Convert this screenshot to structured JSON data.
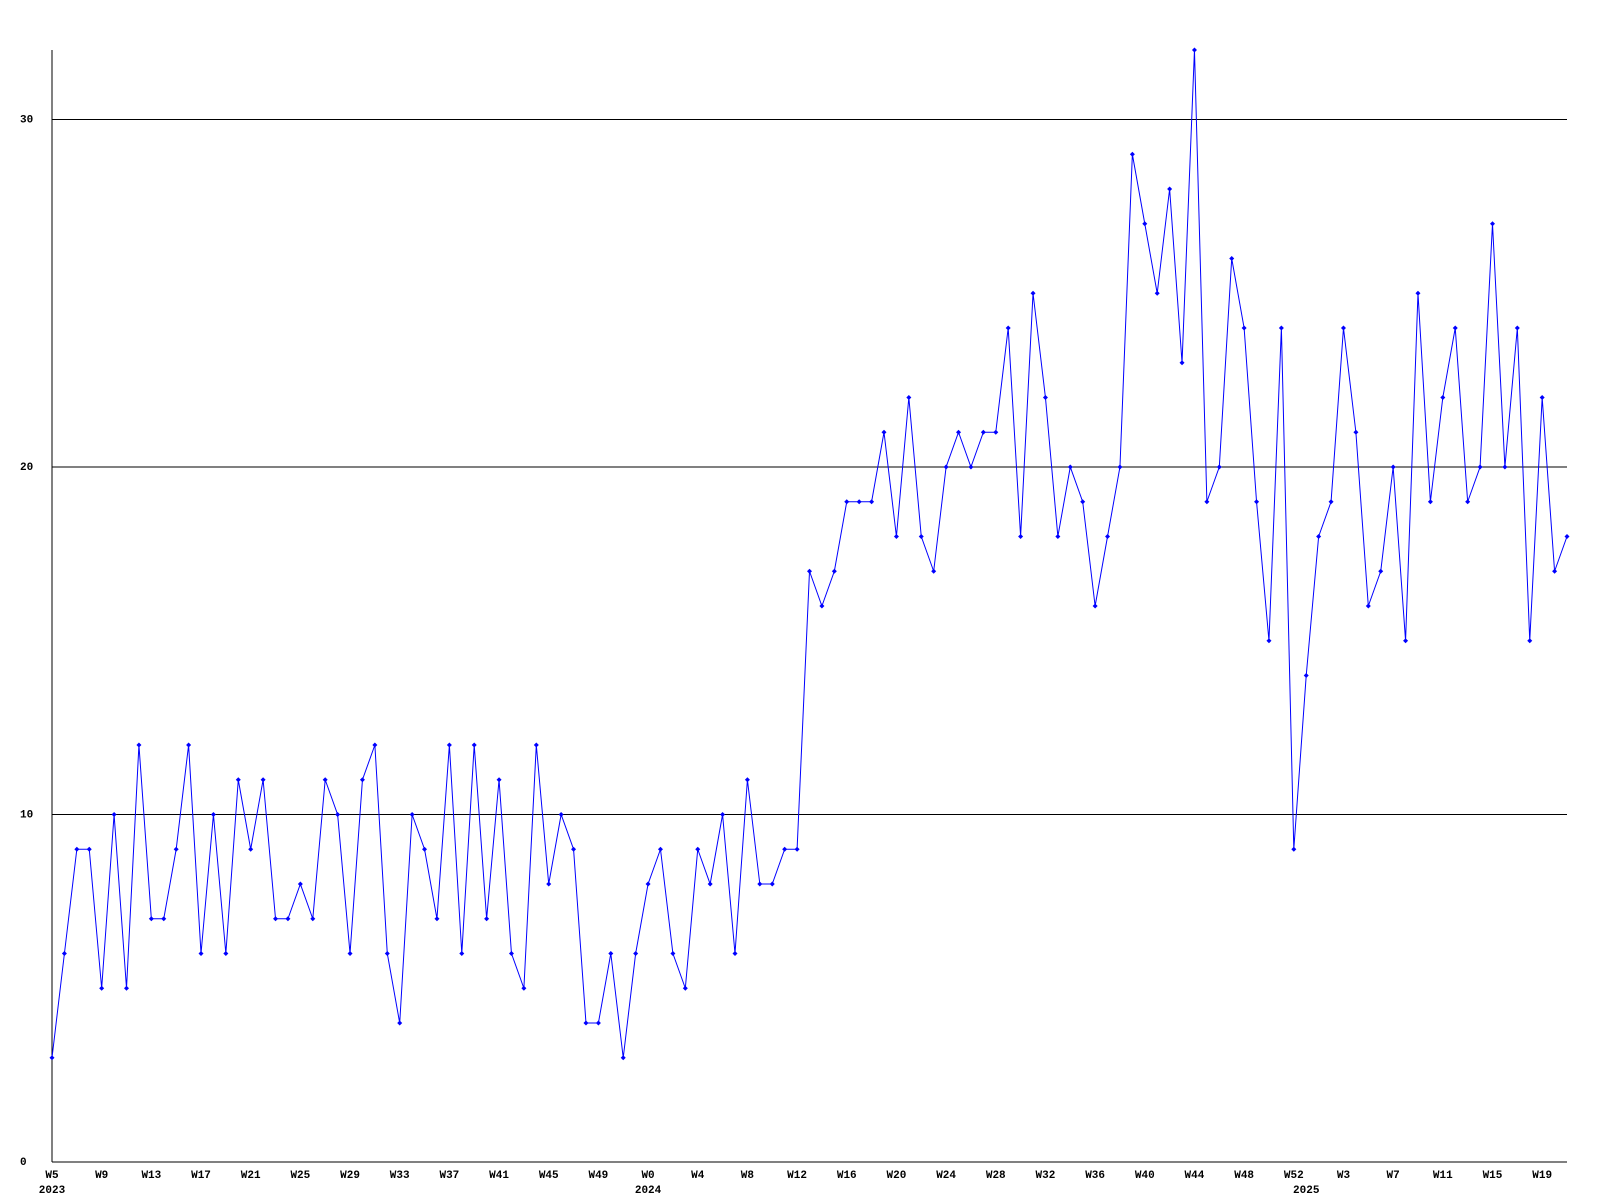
{
  "chart_data": {
    "type": "line",
    "categories": [
      "W5",
      null,
      null,
      null,
      "W9",
      null,
      null,
      null,
      "W13",
      null,
      null,
      null,
      "W17",
      null,
      null,
      null,
      "W21",
      null,
      null,
      null,
      "W25",
      null,
      null,
      null,
      "W29",
      null,
      null,
      null,
      "W33",
      null,
      null,
      null,
      "W37",
      null,
      null,
      null,
      "W41",
      null,
      null,
      null,
      "W45",
      null,
      null,
      null,
      "W49",
      null,
      null,
      null,
      "W0",
      null,
      null,
      null,
      "W4",
      null,
      null,
      null,
      "W8",
      null,
      null,
      null,
      "W12",
      null,
      null,
      null,
      "W16",
      null,
      null,
      null,
      "W20",
      null,
      null,
      null,
      "W24",
      null,
      null,
      null,
      "W28",
      null,
      null,
      null,
      "W32",
      null,
      null,
      null,
      "W36",
      null,
      null,
      null,
      "W40",
      null,
      null,
      null,
      "W44",
      null,
      null,
      null,
      "W48",
      null,
      null,
      null,
      "W52",
      null,
      null,
      null,
      "W3",
      null,
      null,
      null,
      "W7",
      null,
      null,
      null,
      "W11",
      null,
      null,
      null,
      "W15",
      null,
      null,
      null,
      "W19",
      null,
      null
    ],
    "year_labels": [
      "2023",
      null,
      null,
      null,
      null,
      null,
      null,
      null,
      null,
      null,
      null,
      null,
      null,
      null,
      null,
      null,
      null,
      null,
      null,
      null,
      null,
      null,
      null,
      null,
      null,
      null,
      null,
      null,
      null,
      null,
      null,
      null,
      null,
      null,
      null,
      null,
      null,
      null,
      null,
      null,
      null,
      null,
      null,
      null,
      null,
      null,
      null,
      null,
      "2024",
      null,
      null,
      null,
      null,
      null,
      null,
      null,
      null,
      null,
      null,
      null,
      null,
      null,
      null,
      null,
      null,
      null,
      null,
      null,
      null,
      null,
      null,
      null,
      null,
      null,
      null,
      null,
      null,
      null,
      null,
      null,
      null,
      null,
      null,
      null,
      null,
      null,
      null,
      null,
      null,
      null,
      null,
      null,
      null,
      null,
      null,
      null,
      null,
      null,
      null,
      null,
      null,
      "2025",
      null,
      null,
      null,
      null,
      null,
      null,
      null,
      null,
      null,
      null,
      null,
      null,
      null,
      null,
      null,
      null,
      null,
      null,
      null,
      null,
      null
    ],
    "values": [
      3,
      6,
      9,
      9,
      5,
      10,
      5,
      12,
      7,
      7,
      9,
      12,
      6,
      10,
      6,
      11,
      9,
      11,
      7,
      7,
      8,
      7,
      11,
      10,
      6,
      11,
      12,
      6,
      4,
      10,
      9,
      7,
      12,
      6,
      12,
      7,
      11,
      6,
      5,
      12,
      8,
      10,
      9,
      4,
      4,
      6,
      3,
      6,
      8,
      9,
      6,
      5,
      9,
      8,
      10,
      6,
      11,
      8,
      8,
      9,
      9,
      17,
      16,
      17,
      19,
      19,
      19,
      21,
      18,
      22,
      18,
      17,
      20,
      21,
      20,
      21,
      21,
      24,
      18,
      25,
      22,
      18,
      20,
      19,
      16,
      18,
      20,
      29,
      27,
      25,
      28,
      23,
      32,
      19,
      20,
      26,
      24,
      19,
      15,
      24,
      9,
      14,
      18,
      19,
      24,
      21,
      16,
      17,
      20,
      15,
      25,
      19,
      22,
      24,
      19,
      20,
      27,
      20,
      24,
      15,
      22,
      17,
      18
    ],
    "color": "#0000ff",
    "ylim": [
      0,
      32
    ],
    "yticks": [
      0,
      10,
      20,
      30
    ],
    "grid": true
  }
}
